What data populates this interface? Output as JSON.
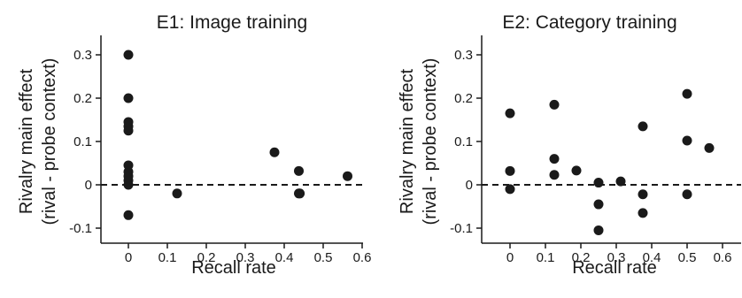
{
  "chart_data": [
    {
      "type": "scatter",
      "title": "E1: Image training",
      "xlabel": "Recall rate",
      "ylabel_line1": "Rivalry main effect",
      "ylabel_line2": "(rival - probe context)",
      "xlim": [
        -0.06,
        0.65
      ],
      "ylim": [
        -0.12,
        0.34
      ],
      "xticks": [
        0,
        0.1,
        0.2,
        0.3,
        0.4,
        0.5,
        0.6
      ],
      "xtick_labels": [
        "0",
        "0.1",
        "0.2",
        "0.3",
        "0.4",
        "0.5",
        "0.6"
      ],
      "yticks": [
        -0.1,
        0,
        0.1,
        0.2,
        0.3
      ],
      "ytick_labels": [
        "-0.1",
        "0",
        "0.1",
        "0.2",
        "0.3"
      ],
      "reference_line": {
        "y": 0,
        "style": "dashed"
      },
      "points": [
        {
          "x": 0,
          "y": 0.3
        },
        {
          "x": 0,
          "y": 0.2
        },
        {
          "x": 0,
          "y": 0.145
        },
        {
          "x": 0,
          "y": 0.135
        },
        {
          "x": 0,
          "y": 0.125
        },
        {
          "x": 0,
          "y": 0.045
        },
        {
          "x": 0,
          "y": 0.03
        },
        {
          "x": 0,
          "y": 0.02
        },
        {
          "x": 0,
          "y": 0.01
        },
        {
          "x": 0,
          "y": 0.0
        },
        {
          "x": 0,
          "y": -0.07
        },
        {
          "x": 0.125,
          "y": -0.02
        },
        {
          "x": 0.375,
          "y": 0.075
        },
        {
          "x": 0.4375,
          "y": 0.032
        },
        {
          "x": 0.4375,
          "y": -0.02
        },
        {
          "x": 0.44,
          "y": -0.02
        },
        {
          "x": 0.5625,
          "y": 0.02
        }
      ]
    },
    {
      "type": "scatter",
      "title": "E2: Category training",
      "xlabel": "Recall rate",
      "ylabel_line1": "Rivalry main effect",
      "ylabel_line2": "(rival - probe context)",
      "xlim": [
        -0.06,
        0.65
      ],
      "ylim": [
        -0.12,
        0.34
      ],
      "xticks": [
        0,
        0.1,
        0.2,
        0.3,
        0.4,
        0.5,
        0.6
      ],
      "xtick_labels": [
        "0",
        "0.1",
        "0.2",
        "0.3",
        "0.4",
        "0.5",
        "0.6"
      ],
      "yticks": [
        -0.1,
        0,
        0.1,
        0.2,
        0.3
      ],
      "ytick_labels": [
        "-0.1",
        "0",
        "0.1",
        "0.2",
        "0.3"
      ],
      "reference_line": {
        "y": 0,
        "style": "dashed"
      },
      "points": [
        {
          "x": 0,
          "y": 0.165
        },
        {
          "x": 0,
          "y": 0.032
        },
        {
          "x": 0,
          "y": -0.01
        },
        {
          "x": 0.125,
          "y": 0.185
        },
        {
          "x": 0.125,
          "y": 0.06
        },
        {
          "x": 0.125,
          "y": 0.023
        },
        {
          "x": 0.1875,
          "y": 0.033
        },
        {
          "x": 0.25,
          "y": 0.005
        },
        {
          "x": 0.25,
          "y": -0.045
        },
        {
          "x": 0.25,
          "y": -0.105
        },
        {
          "x": 0.3125,
          "y": 0.008
        },
        {
          "x": 0.375,
          "y": 0.135
        },
        {
          "x": 0.375,
          "y": -0.022
        },
        {
          "x": 0.375,
          "y": -0.065
        },
        {
          "x": 0.5,
          "y": 0.21
        },
        {
          "x": 0.5,
          "y": 0.102
        },
        {
          "x": 0.5,
          "y": -0.022
        },
        {
          "x": 0.5625,
          "y": 0.085
        }
      ]
    }
  ]
}
